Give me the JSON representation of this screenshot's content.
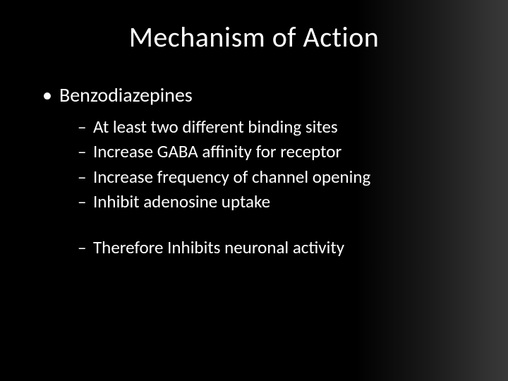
{
  "slide": {
    "title": "Mechanism of Action",
    "bullet_main": "Benzodiazepines",
    "sub_bullets": [
      "At least two different binding sites",
      "Increase GABA affinity for receptor",
      "Increase frequency of channel opening",
      "Inhibit adenosine uptake"
    ],
    "conclusion_bullet": "Therefore Inhibits neuronal activity",
    "styling": {
      "background_gradient_from": "#000000",
      "background_gradient_to": "#3a3a3a",
      "text_color": "#ffffff",
      "title_fontsize": 40,
      "bullet_l1_fontsize": 28,
      "bullet_l2_fontsize": 25,
      "font_family": "Calibri"
    }
  }
}
